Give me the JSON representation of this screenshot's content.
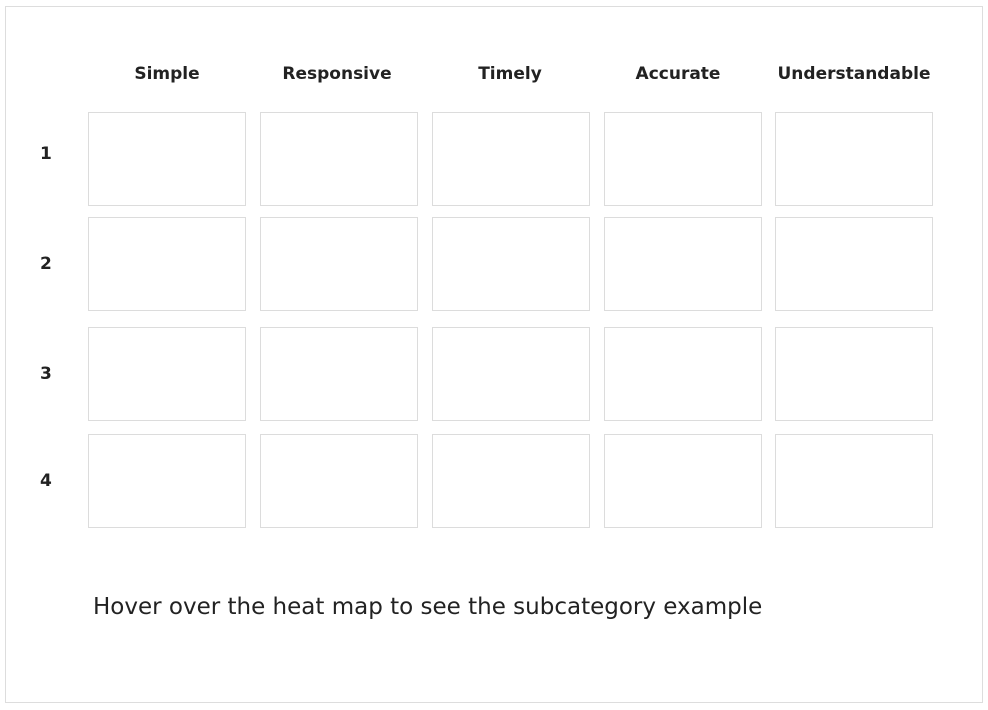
{
  "heatmap": {
    "columns": [
      "Simple",
      "Responsive",
      "Timely",
      "Accurate",
      "Understandable"
    ],
    "rows": [
      "1",
      "2",
      "3",
      "4"
    ]
  },
  "hint_text": "Hover over the heat map to see the subcategory example"
}
